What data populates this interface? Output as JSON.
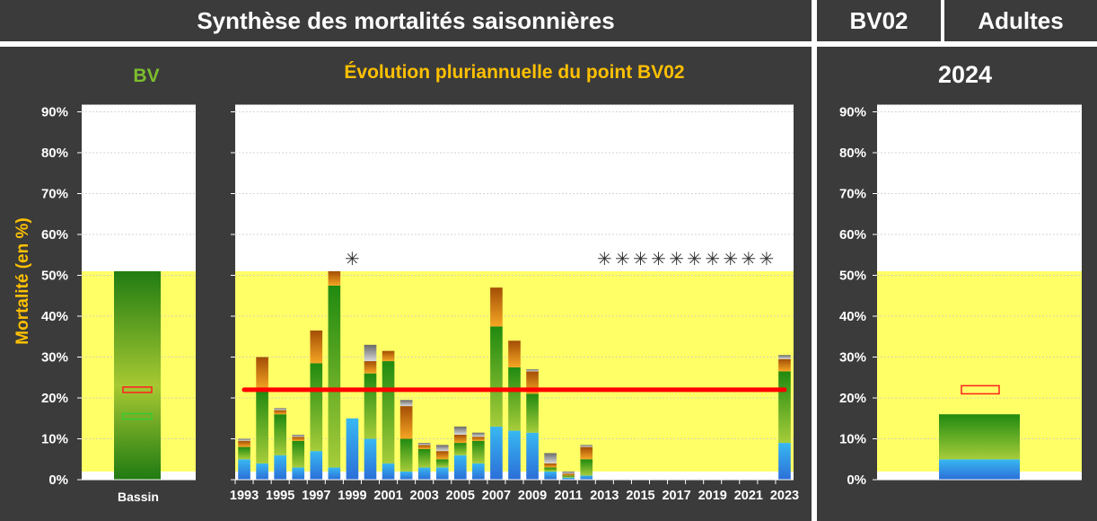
{
  "header": {
    "title": "Synthèse des mortalités saisonnières",
    "station": "BV02",
    "stage": "Adultes"
  },
  "colors": {
    "panel_bg": "#3b3b3b",
    "station_color": "#ffc000",
    "stage_color": "#33c4f0",
    "chart_title_color": "#ffc000",
    "band_color": "#ffff66",
    "reference_line": "#ff0000",
    "green_bottom": "#3e8e1c",
    "blue_segment": "#3fa8f0",
    "orange_top": "#c07010",
    "grey_top": "#808080"
  },
  "chart_data": [
    {
      "type": "bar",
      "title": "BV",
      "ylabel": "Mortalité (en %)",
      "ylim": [
        0,
        0.9
      ],
      "yticks": [
        "0%",
        "10%",
        "20%",
        "30%",
        "40%",
        "50%",
        "60%",
        "70%",
        "80%",
        "90%"
      ],
      "categories": [
        "Bassin"
      ],
      "band": [
        0.02,
        0.51
      ],
      "total": 0.51,
      "markers": [
        {
          "name": "red",
          "value": 0.22
        },
        {
          "name": "green",
          "value": 0.155
        }
      ],
      "grid": true
    },
    {
      "type": "bar",
      "title": "Évolution pluriannuelle du point BV02",
      "ylim": [
        0,
        0.9
      ],
      "band": [
        0.02,
        0.51
      ],
      "reference_line": 0.22,
      "x_tick_labels": [
        "1993",
        "1995",
        "1997",
        "1999",
        "2001",
        "2003",
        "2005",
        "2007",
        "2009",
        "2011",
        "2013",
        "2015",
        "2017",
        "2019",
        "2021",
        "2023"
      ],
      "categories": [
        "1993",
        "1994",
        "1995",
        "1996",
        "1997",
        "1998",
        "1999",
        "2000",
        "2001",
        "2002",
        "2003",
        "2004",
        "2005",
        "2006",
        "2007",
        "2008",
        "2009",
        "2010",
        "2011",
        "2012",
        "2013",
        "2014",
        "2015",
        "2016",
        "2017",
        "2018",
        "2019",
        "2020",
        "2021",
        "2022",
        "2023"
      ],
      "series": [
        {
          "name": "blue",
          "values": [
            0.05,
            0.04,
            0.06,
            0.03,
            0.07,
            0.03,
            0.15,
            0.1,
            0.04,
            0.02,
            0.03,
            0.03,
            0.06,
            0.04,
            0.13,
            0.12,
            0.115,
            0.02,
            0.005,
            0.01,
            0,
            0,
            0,
            0,
            0,
            0,
            0,
            0,
            0,
            0,
            0.09
          ]
        },
        {
          "name": "green",
          "values": [
            0.03,
            0.18,
            0.1,
            0.065,
            0.215,
            0.445,
            0,
            0.16,
            0.25,
            0.08,
            0.045,
            0.02,
            0.03,
            0.055,
            0.245,
            0.155,
            0.095,
            0.01,
            0.005,
            0.04,
            0,
            0,
            0,
            0,
            0,
            0,
            0,
            0,
            0,
            0,
            0.175
          ]
        },
        {
          "name": "orange",
          "values": [
            0.015,
            0.08,
            0.01,
            0.01,
            0.08,
            0.035,
            0,
            0.03,
            0.025,
            0.08,
            0.01,
            0.02,
            0.02,
            0.01,
            0.095,
            0.065,
            0.055,
            0.01,
            0.005,
            0.03,
            0,
            0,
            0,
            0,
            0,
            0,
            0,
            0,
            0,
            0,
            0.03
          ]
        },
        {
          "name": "grey",
          "values": [
            0.005,
            0,
            0.005,
            0.005,
            0,
            0,
            0,
            0.04,
            0,
            0.015,
            0.005,
            0.015,
            0.02,
            0.01,
            0,
            0,
            0.005,
            0.025,
            0.005,
            0.005,
            0,
            0,
            0,
            0,
            0,
            0,
            0,
            0,
            0,
            0,
            0.01
          ]
        }
      ],
      "missing_marker": "✳",
      "missing_years": [
        "1999",
        "2013",
        "2014",
        "2015",
        "2016",
        "2017",
        "2018",
        "2019",
        "2020",
        "2021",
        "2022"
      ],
      "grid": true
    },
    {
      "type": "bar",
      "title": "2024",
      "ylim": [
        0,
        0.9
      ],
      "yticks": [
        "0%",
        "10%",
        "20%",
        "30%",
        "40%",
        "50%",
        "60%",
        "70%",
        "80%",
        "90%"
      ],
      "band": [
        0.02,
        0.51
      ],
      "reference_marker": 0.22,
      "series": [
        {
          "name": "blue",
          "value": 0.05
        },
        {
          "name": "green",
          "value": 0.11
        }
      ],
      "grid": true
    }
  ]
}
